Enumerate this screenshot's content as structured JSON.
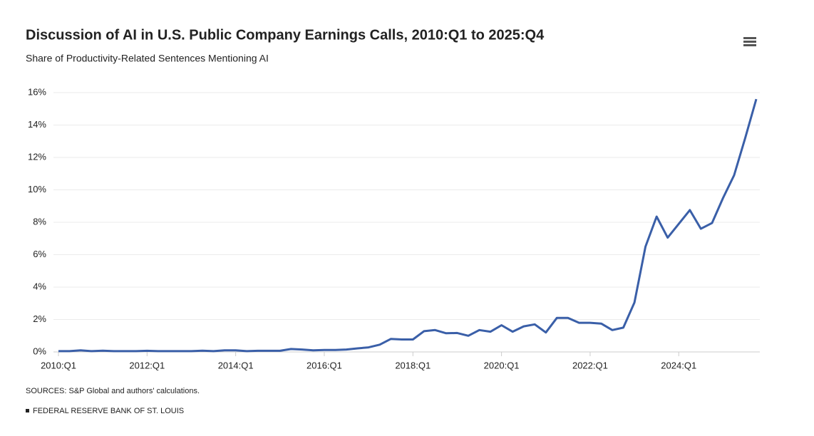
{
  "chart_data": {
    "type": "line",
    "title": "Discussion of AI in U.S. Public Company Earnings Calls, 2010:Q1 to 2025:Q4",
    "subtitle": "Share of Productivity-Related Sentences Mentioning AI",
    "source": "SOURCES: S&P Global and authors' calculations.",
    "footer": "FEDERAL RESERVE BANK OF ST. LOUIS",
    "categories": [
      "2010:Q1",
      null,
      null,
      null,
      null,
      null,
      null,
      null,
      "2012:Q1",
      null,
      null,
      null,
      null,
      null,
      null,
      null,
      "2014:Q1",
      null,
      null,
      null,
      null,
      null,
      null,
      null,
      "2016:Q1",
      null,
      null,
      null,
      null,
      null,
      null,
      null,
      "2018:Q1",
      null,
      null,
      null,
      null,
      null,
      null,
      null,
      "2020:Q1",
      null,
      null,
      null,
      null,
      null,
      null,
      null,
      "2022:Q1",
      null,
      null,
      null,
      null,
      null,
      null,
      null,
      "2024:Q1",
      null,
      null,
      null,
      null,
      null,
      null,
      null
    ],
    "series": [
      {
        "name": "Share mentioning AI",
        "color": "#3a5fa8",
        "values": [
          0.05,
          0.05,
          0.1,
          0.05,
          0.08,
          0.05,
          0.05,
          0.05,
          0.07,
          0.05,
          0.05,
          0.05,
          0.05,
          0.08,
          0.05,
          0.1,
          0.1,
          0.05,
          0.07,
          0.07,
          0.07,
          0.18,
          0.15,
          0.1,
          0.12,
          0.12,
          0.15,
          0.22,
          0.28,
          0.45,
          0.8,
          0.77,
          0.77,
          1.28,
          1.35,
          1.15,
          1.17,
          1.0,
          1.35,
          1.25,
          1.65,
          1.25,
          1.58,
          1.7,
          1.2,
          2.1,
          2.1,
          1.8,
          1.8,
          1.75,
          1.35,
          1.5,
          3.05,
          6.5,
          8.35,
          7.05,
          7.9,
          8.75,
          7.6,
          7.95,
          9.5,
          10.9,
          13.2,
          15.6
        ]
      }
    ],
    "ylim": [
      0,
      16
    ],
    "yticks": [
      {
        "value": 0,
        "label": "0%"
      },
      {
        "value": 2,
        "label": "2%"
      },
      {
        "value": 4,
        "label": "4%"
      },
      {
        "value": 6,
        "label": "6%"
      },
      {
        "value": 8,
        "label": "8%"
      },
      {
        "value": 10,
        "label": "10%"
      },
      {
        "value": 12,
        "label": "12%"
      },
      {
        "value": 14,
        "label": "14%"
      },
      {
        "value": 16,
        "label": "16%"
      }
    ],
    "grid": true
  }
}
